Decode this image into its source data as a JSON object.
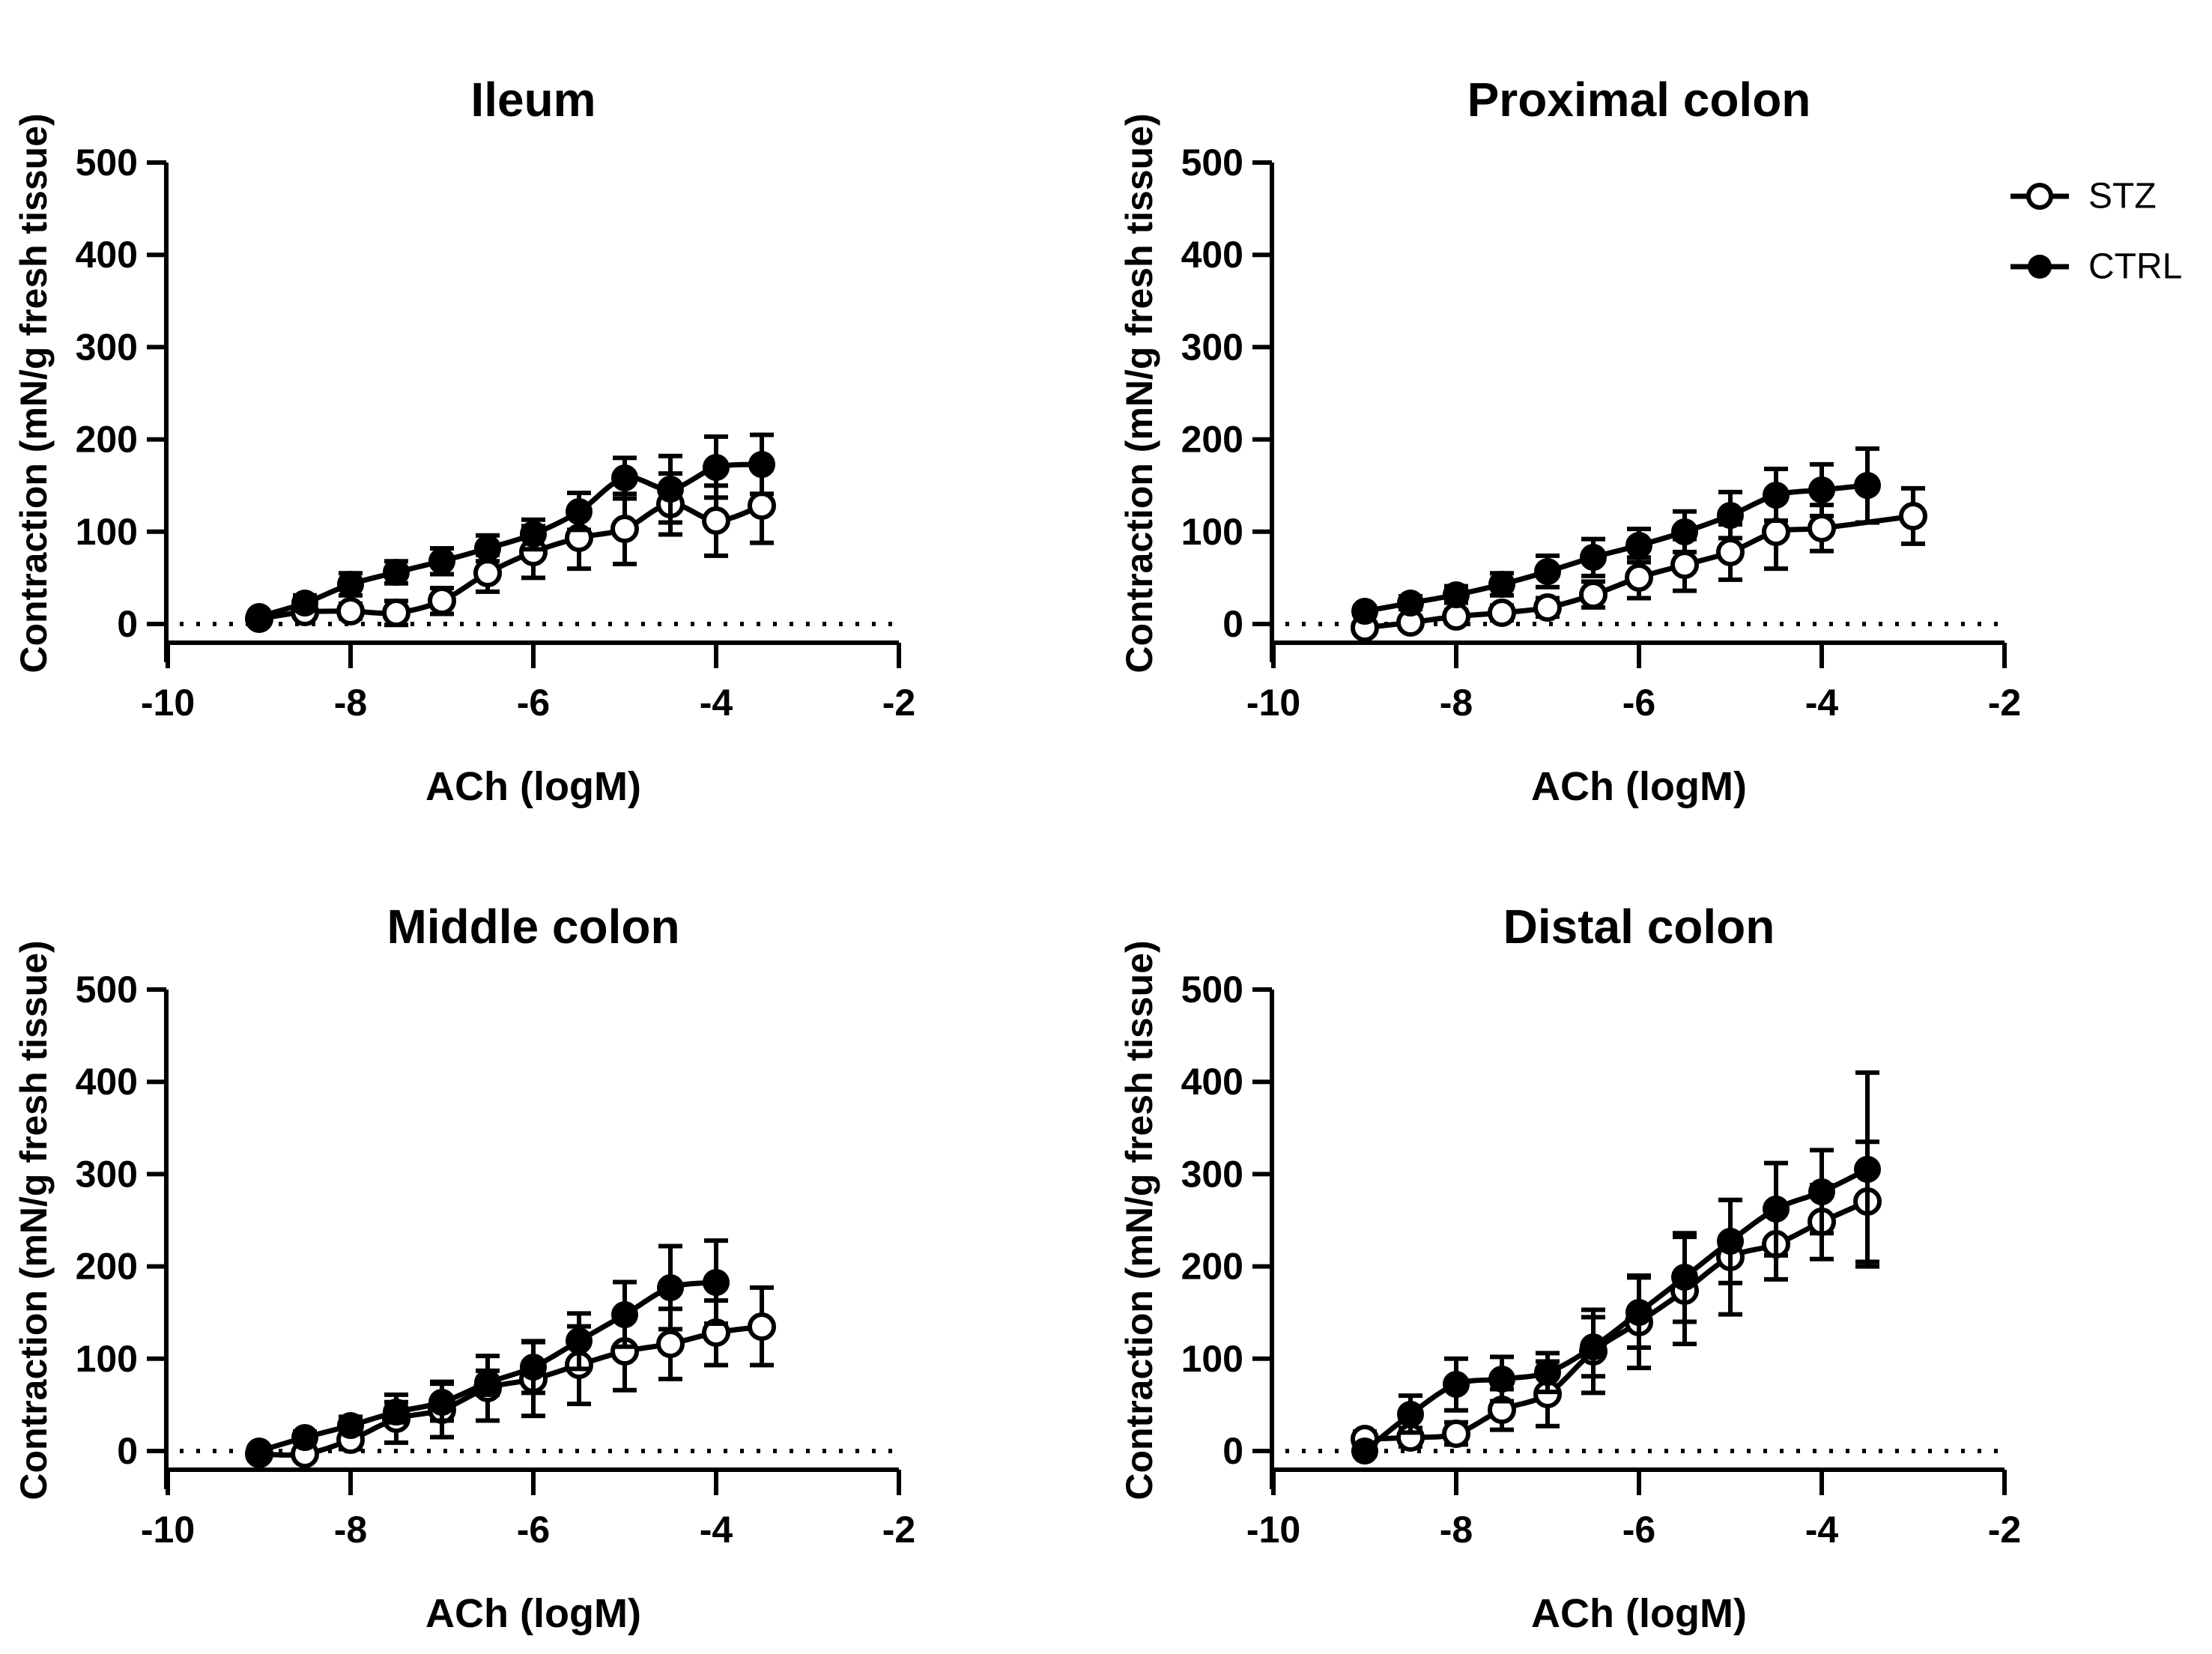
{
  "colors": {
    "foreground": "#000000",
    "background": "#ffffff"
  },
  "legend": {
    "position": "top-right-panel",
    "items": [
      {
        "label": "STZ",
        "marker": "open-circle"
      },
      {
        "label": "CTRL",
        "marker": "filled-circle"
      }
    ]
  },
  "chart_data": [
    {
      "type": "line",
      "id": "ileum",
      "title": "Ileum",
      "xlabel": "ACh (logM)",
      "ylabel": "Contraction (mN/g fresh tissue)",
      "xlim": [
        -10,
        -2
      ],
      "ylim": [
        0,
        500
      ],
      "x_ticks": [
        "-10",
        "-8",
        "-6",
        "-4",
        "-2"
      ],
      "x_tick_values": [
        -10,
        -8,
        -6,
        -4,
        -2
      ],
      "y_ticks": [
        "0",
        "100",
        "200",
        "300",
        "400",
        "500"
      ],
      "y_tick_values": [
        0,
        100,
        200,
        300,
        400,
        500
      ],
      "baseline_dotted_at": 0,
      "series": [
        {
          "name": "STZ",
          "marker": "open-circle",
          "x": [
            -9,
            -8.5,
            -8,
            -7.5,
            -7,
            -6.5,
            -6,
            -5.5,
            -5,
            -4.5,
            -4,
            -3.5
          ],
          "y": [
            6,
            13,
            14,
            12,
            25,
            55,
            78,
            93,
            103,
            130,
            112,
            128
          ],
          "err": [
            4,
            6,
            8,
            13,
            14,
            20,
            28,
            33,
            38,
            33,
            38,
            40
          ]
        },
        {
          "name": "CTRL",
          "marker": "filled-circle",
          "x": [
            -9,
            -8.5,
            -8,
            -7.5,
            -7,
            -6.5,
            -6,
            -5.5,
            -5,
            -4.5,
            -4,
            -3.5
          ],
          "y": [
            8,
            23,
            43,
            56,
            68,
            82,
            97,
            122,
            158,
            146,
            170,
            173
          ],
          "err": [
            4,
            8,
            12,
            12,
            14,
            14,
            16,
            20,
            22,
            36,
            33,
            32
          ]
        }
      ]
    },
    {
      "type": "line",
      "id": "proximal-colon",
      "title": "Proximal colon",
      "xlabel": "ACh (logM)",
      "ylabel": "Contraction (mN/g fresh tissue)",
      "xlim": [
        -10,
        -2
      ],
      "ylim": [
        0,
        500
      ],
      "x_ticks": [
        "-10",
        "-8",
        "-6",
        "-4",
        "-2"
      ],
      "x_tick_values": [
        -10,
        -8,
        -6,
        -4,
        -2
      ],
      "y_ticks": [
        "0",
        "100",
        "200",
        "300",
        "400",
        "500"
      ],
      "y_tick_values": [
        0,
        100,
        200,
        300,
        400,
        500
      ],
      "baseline_dotted_at": 0,
      "show_legend": true,
      "series": [
        {
          "name": "STZ",
          "marker": "open-circle",
          "x": [
            -9,
            -8.5,
            -8,
            -7.5,
            -7,
            -6.5,
            -6,
            -5.5,
            -5,
            -4.5,
            -4,
            -3
          ],
          "y": [
            -4,
            2,
            8,
            12,
            18,
            32,
            50,
            64,
            78,
            100,
            104,
            117
          ],
          "err": [
            5,
            6,
            7,
            8,
            10,
            14,
            22,
            28,
            30,
            40,
            25,
            30
          ]
        },
        {
          "name": "CTRL",
          "marker": "filled-circle",
          "x": [
            -9,
            -8.5,
            -8,
            -7.5,
            -7,
            -6.5,
            -6,
            -5.5,
            -5,
            -4.5,
            -4,
            -3.5
          ],
          "y": [
            14,
            23,
            32,
            43,
            57,
            72,
            85,
            100,
            118,
            140,
            145,
            150
          ],
          "err": [
            5,
            7,
            9,
            12,
            17,
            20,
            18,
            22,
            25,
            28,
            28,
            40
          ]
        }
      ]
    },
    {
      "type": "line",
      "id": "middle-colon",
      "title": "Middle colon",
      "xlabel": "ACh (logM)",
      "ylabel": "Contraction (mN/g fresh tissue)",
      "xlim": [
        -10,
        -2
      ],
      "ylim": [
        0,
        500
      ],
      "x_ticks": [
        "-10",
        "-8",
        "-6",
        "-4",
        "-2"
      ],
      "x_tick_values": [
        -10,
        -8,
        -6,
        -4,
        -2
      ],
      "y_ticks": [
        "0",
        "100",
        "200",
        "300",
        "400",
        "500"
      ],
      "y_tick_values": [
        0,
        100,
        200,
        300,
        400,
        500
      ],
      "baseline_dotted_at": 0,
      "series": [
        {
          "name": "STZ",
          "marker": "open-circle",
          "x": [
            -9,
            -8.5,
            -8,
            -7.5,
            -7,
            -6.5,
            -6,
            -5.5,
            -5,
            -4.5,
            -4,
            -3.5
          ],
          "y": [
            -3,
            -3,
            12,
            35,
            45,
            68,
            78,
            93,
            108,
            116,
            128,
            135
          ],
          "err": [
            4,
            5,
            10,
            26,
            30,
            35,
            40,
            42,
            42,
            38,
            35,
            42
          ]
        },
        {
          "name": "CTRL",
          "marker": "filled-circle",
          "x": [
            -9,
            -8.5,
            -8,
            -7.5,
            -7,
            -6.5,
            -6,
            -5.5,
            -5,
            -4.5,
            -4
          ],
          "y": [
            0,
            15,
            28,
            42,
            53,
            74,
            91,
            119,
            148,
            177,
            183
          ],
          "err": [
            3,
            6,
            9,
            11,
            20,
            13,
            28,
            30,
            35,
            45,
            45
          ]
        }
      ]
    },
    {
      "type": "line",
      "id": "distal-colon",
      "title": "Distal colon",
      "xlabel": "ACh (logM)",
      "ylabel": "Contraction (mN/g fresh tissue)",
      "xlim": [
        -10,
        -2
      ],
      "ylim": [
        0,
        500
      ],
      "x_ticks": [
        "-10",
        "-8",
        "-6",
        "-4",
        "-2"
      ],
      "x_tick_values": [
        -10,
        -8,
        -6,
        -4,
        -2
      ],
      "y_ticks": [
        "0",
        "100",
        "200",
        "300",
        "400",
        "500"
      ],
      "y_tick_values": [
        0,
        100,
        200,
        300,
        400,
        500
      ],
      "baseline_dotted_at": 0,
      "series": [
        {
          "name": "STZ",
          "marker": "open-circle",
          "x": [
            -9,
            -8.5,
            -8,
            -7.5,
            -7,
            -6.5,
            -6,
            -5.5,
            -5,
            -4.5,
            -4,
            -3.5
          ],
          "y": [
            13,
            15,
            19,
            45,
            62,
            108,
            140,
            174,
            210,
            224,
            248,
            270
          ],
          "err": [
            8,
            10,
            12,
            22,
            35,
            45,
            50,
            58,
            62,
            38,
            40,
            65
          ]
        },
        {
          "name": "CTRL",
          "marker": "filled-circle",
          "x": [
            -9,
            -8.5,
            -8,
            -7.5,
            -7,
            -6.5,
            -6,
            -5.5,
            -5,
            -4.5,
            -4,
            -3.5
          ],
          "y": [
            0,
            40,
            72,
            78,
            85,
            113,
            150,
            188,
            227,
            262,
            281,
            305
          ],
          "err": [
            5,
            20,
            28,
            24,
            21,
            32,
            38,
            48,
            45,
            50,
            45,
            105
          ]
        }
      ]
    }
  ]
}
